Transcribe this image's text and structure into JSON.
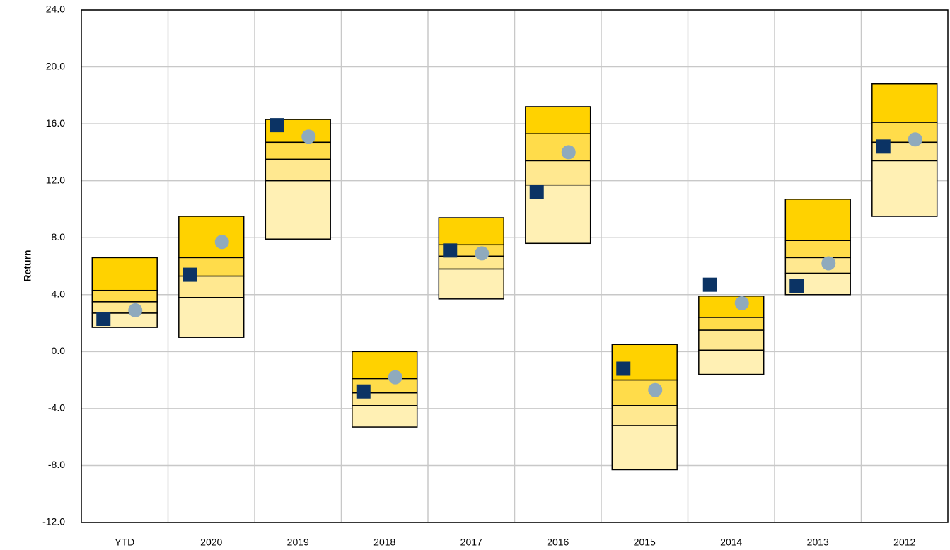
{
  "chart_data": {
    "type": "floating_bar",
    "y_label": "Return",
    "categories": [
      "YTD",
      "2020",
      "2019",
      "2018",
      "2017",
      "2016",
      "2015",
      "2014",
      "2013",
      "2012"
    ],
    "bounds": [
      {
        "values": [
          6.6,
          9.5,
          16.3,
          0.0,
          9.4,
          17.2,
          0.5,
          3.9,
          10.7,
          18.8
        ]
      },
      {
        "values": [
          4.3,
          6.6,
          14.7,
          -1.9,
          7.5,
          15.3,
          -2.0,
          2.4,
          7.8,
          16.1
        ]
      },
      {
        "values": [
          3.5,
          5.3,
          13.5,
          -2.9,
          6.7,
          13.4,
          -3.8,
          1.5,
          6.6,
          14.7
        ]
      },
      {
        "values": [
          2.7,
          3.8,
          12.0,
          -3.8,
          5.8,
          11.7,
          -5.2,
          0.1,
          5.5,
          13.4
        ]
      },
      {
        "values": [
          1.7,
          1.0,
          7.9,
          -5.3,
          3.7,
          7.6,
          -8.3,
          -1.6,
          4.0,
          9.5
        ]
      }
    ],
    "band_colors": [
      "#ffd200",
      "#ffdc4a",
      "#ffe890",
      "#fff0b4"
    ],
    "markers": [
      {
        "shape": "square",
        "color": "#0b3364",
        "values": [
          2.3,
          5.4,
          15.9,
          -2.8,
          7.1,
          11.2,
          -1.2,
          4.7,
          4.6,
          14.4
        ]
      },
      {
        "shape": "circle",
        "color": "#8faabd",
        "values": [
          2.9,
          7.7,
          15.1,
          -1.8,
          6.9,
          14.0,
          -2.7,
          3.4,
          6.2,
          14.9
        ]
      }
    ],
    "ylim": [
      -12,
      24
    ],
    "yticks": [
      {
        "value": -12,
        "label": "-12.0"
      },
      {
        "value": -8,
        "label": "-8.0"
      },
      {
        "value": -4,
        "label": "-4.0"
      },
      {
        "value": 0,
        "label": "0.0"
      },
      {
        "value": 4,
        "label": "4.0"
      },
      {
        "value": 8,
        "label": "8.0"
      },
      {
        "value": 12,
        "label": "12.0"
      },
      {
        "value": 16,
        "label": "16.0"
      },
      {
        "value": 20,
        "label": "20.0"
      },
      {
        "value": 24,
        "label": "24.0"
      }
    ],
    "grid": true
  }
}
